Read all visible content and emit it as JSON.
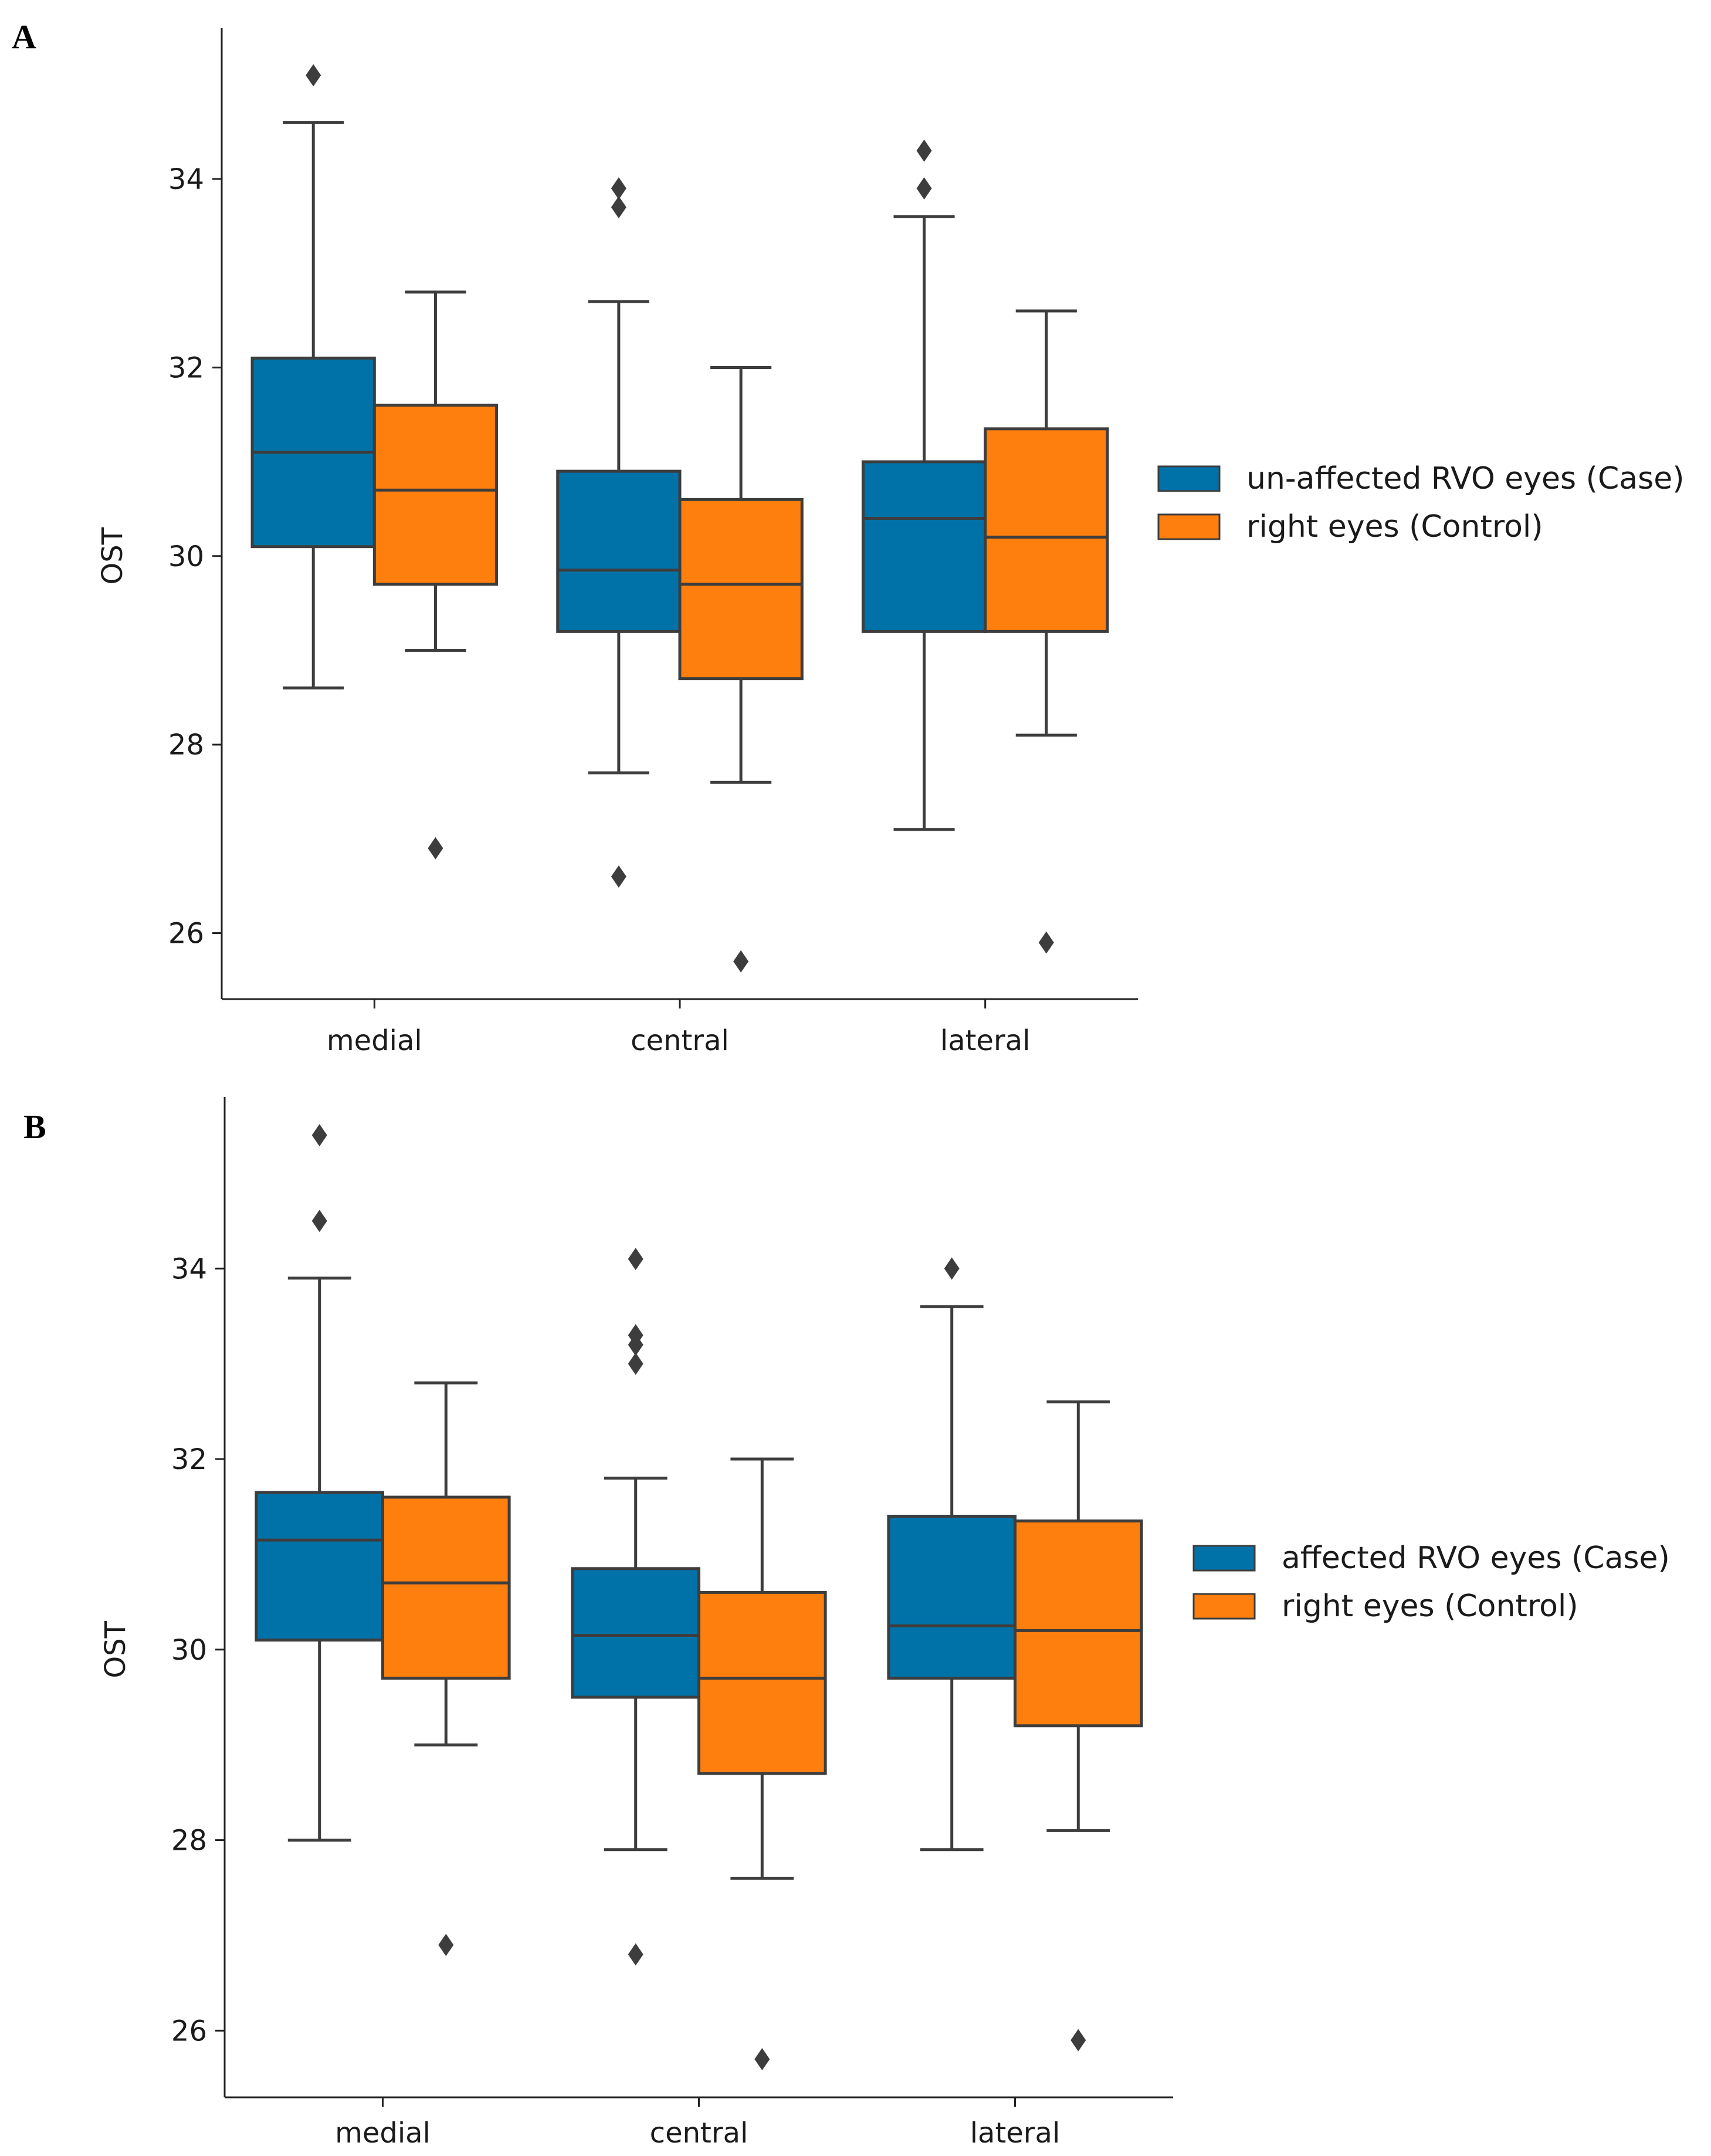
{
  "colors": {
    "case": "#0072a8",
    "control": "#ff7f0e",
    "line": "#3d3d3d",
    "outlier": "#3d3d3d"
  },
  "chart_data": [
    {
      "type": "box",
      "panel_label": "A",
      "ylabel": "OST",
      "xlabel": "",
      "ylim": [
        25.3,
        35.6
      ],
      "yticks": [
        26,
        28,
        30,
        32,
        34
      ],
      "categories": [
        "medial",
        "central",
        "lateral"
      ],
      "legend_position": "right",
      "series": [
        {
          "name": "un-affected RVO eyes (Case)",
          "color": "#0072a8",
          "boxes": [
            {
              "whisker_low": 28.6,
              "q1": 30.1,
              "median": 31.1,
              "q3": 32.1,
              "whisker_high": 34.6,
              "outliers": [
                35.1
              ]
            },
            {
              "whisker_low": 27.7,
              "q1": 29.2,
              "median": 29.85,
              "q3": 30.9,
              "whisker_high": 32.7,
              "outliers": [
                33.9,
                33.7,
                26.6
              ]
            },
            {
              "whisker_low": 27.1,
              "q1": 29.2,
              "median": 30.4,
              "q3": 31.0,
              "whisker_high": 33.6,
              "outliers": [
                34.3,
                33.9
              ]
            }
          ]
        },
        {
          "name": "right eyes (Control)",
          "color": "#ff7f0e",
          "boxes": [
            {
              "whisker_low": 29.0,
              "q1": 29.7,
              "median": 30.7,
              "q3": 31.6,
              "whisker_high": 32.8,
              "outliers": [
                26.9
              ]
            },
            {
              "whisker_low": 27.6,
              "q1": 28.7,
              "median": 29.7,
              "q3": 30.6,
              "whisker_high": 32.0,
              "outliers": [
                25.7
              ]
            },
            {
              "whisker_low": 28.1,
              "q1": 29.2,
              "median": 30.2,
              "q3": 31.35,
              "whisker_high": 32.6,
              "outliers": [
                25.9
              ]
            }
          ]
        }
      ]
    },
    {
      "type": "box",
      "panel_label": "B",
      "ylabel": "OST",
      "xlabel": "",
      "ylim": [
        25.3,
        35.8
      ],
      "yticks": [
        26,
        28,
        30,
        32,
        34
      ],
      "categories": [
        "medial",
        "central",
        "lateral"
      ],
      "legend_position": "right",
      "series": [
        {
          "name": "affected RVO eyes (Case)",
          "color": "#0072a8",
          "boxes": [
            {
              "whisker_low": 28.0,
              "q1": 30.1,
              "median": 31.15,
              "q3": 31.65,
              "whisker_high": 33.9,
              "outliers": [
                35.4,
                34.5
              ]
            },
            {
              "whisker_low": 27.9,
              "q1": 29.5,
              "median": 30.15,
              "q3": 30.85,
              "whisker_high": 31.8,
              "outliers": [
                34.1,
                33.3,
                33.2,
                33.0,
                26.8
              ]
            },
            {
              "whisker_low": 27.9,
              "q1": 29.7,
              "median": 30.25,
              "q3": 31.4,
              "whisker_high": 33.6,
              "outliers": [
                34.0
              ]
            }
          ]
        },
        {
          "name": "right eyes (Control)",
          "color": "#ff7f0e",
          "boxes": [
            {
              "whisker_low": 29.0,
              "q1": 29.7,
              "median": 30.7,
              "q3": 31.6,
              "whisker_high": 32.8,
              "outliers": [
                26.9
              ]
            },
            {
              "whisker_low": 27.6,
              "q1": 28.7,
              "median": 29.7,
              "q3": 30.6,
              "whisker_high": 32.0,
              "outliers": [
                25.7
              ]
            },
            {
              "whisker_low": 28.1,
              "q1": 29.2,
              "median": 30.2,
              "q3": 31.35,
              "whisker_high": 32.6,
              "outliers": [
                25.9
              ]
            }
          ]
        }
      ]
    }
  ]
}
